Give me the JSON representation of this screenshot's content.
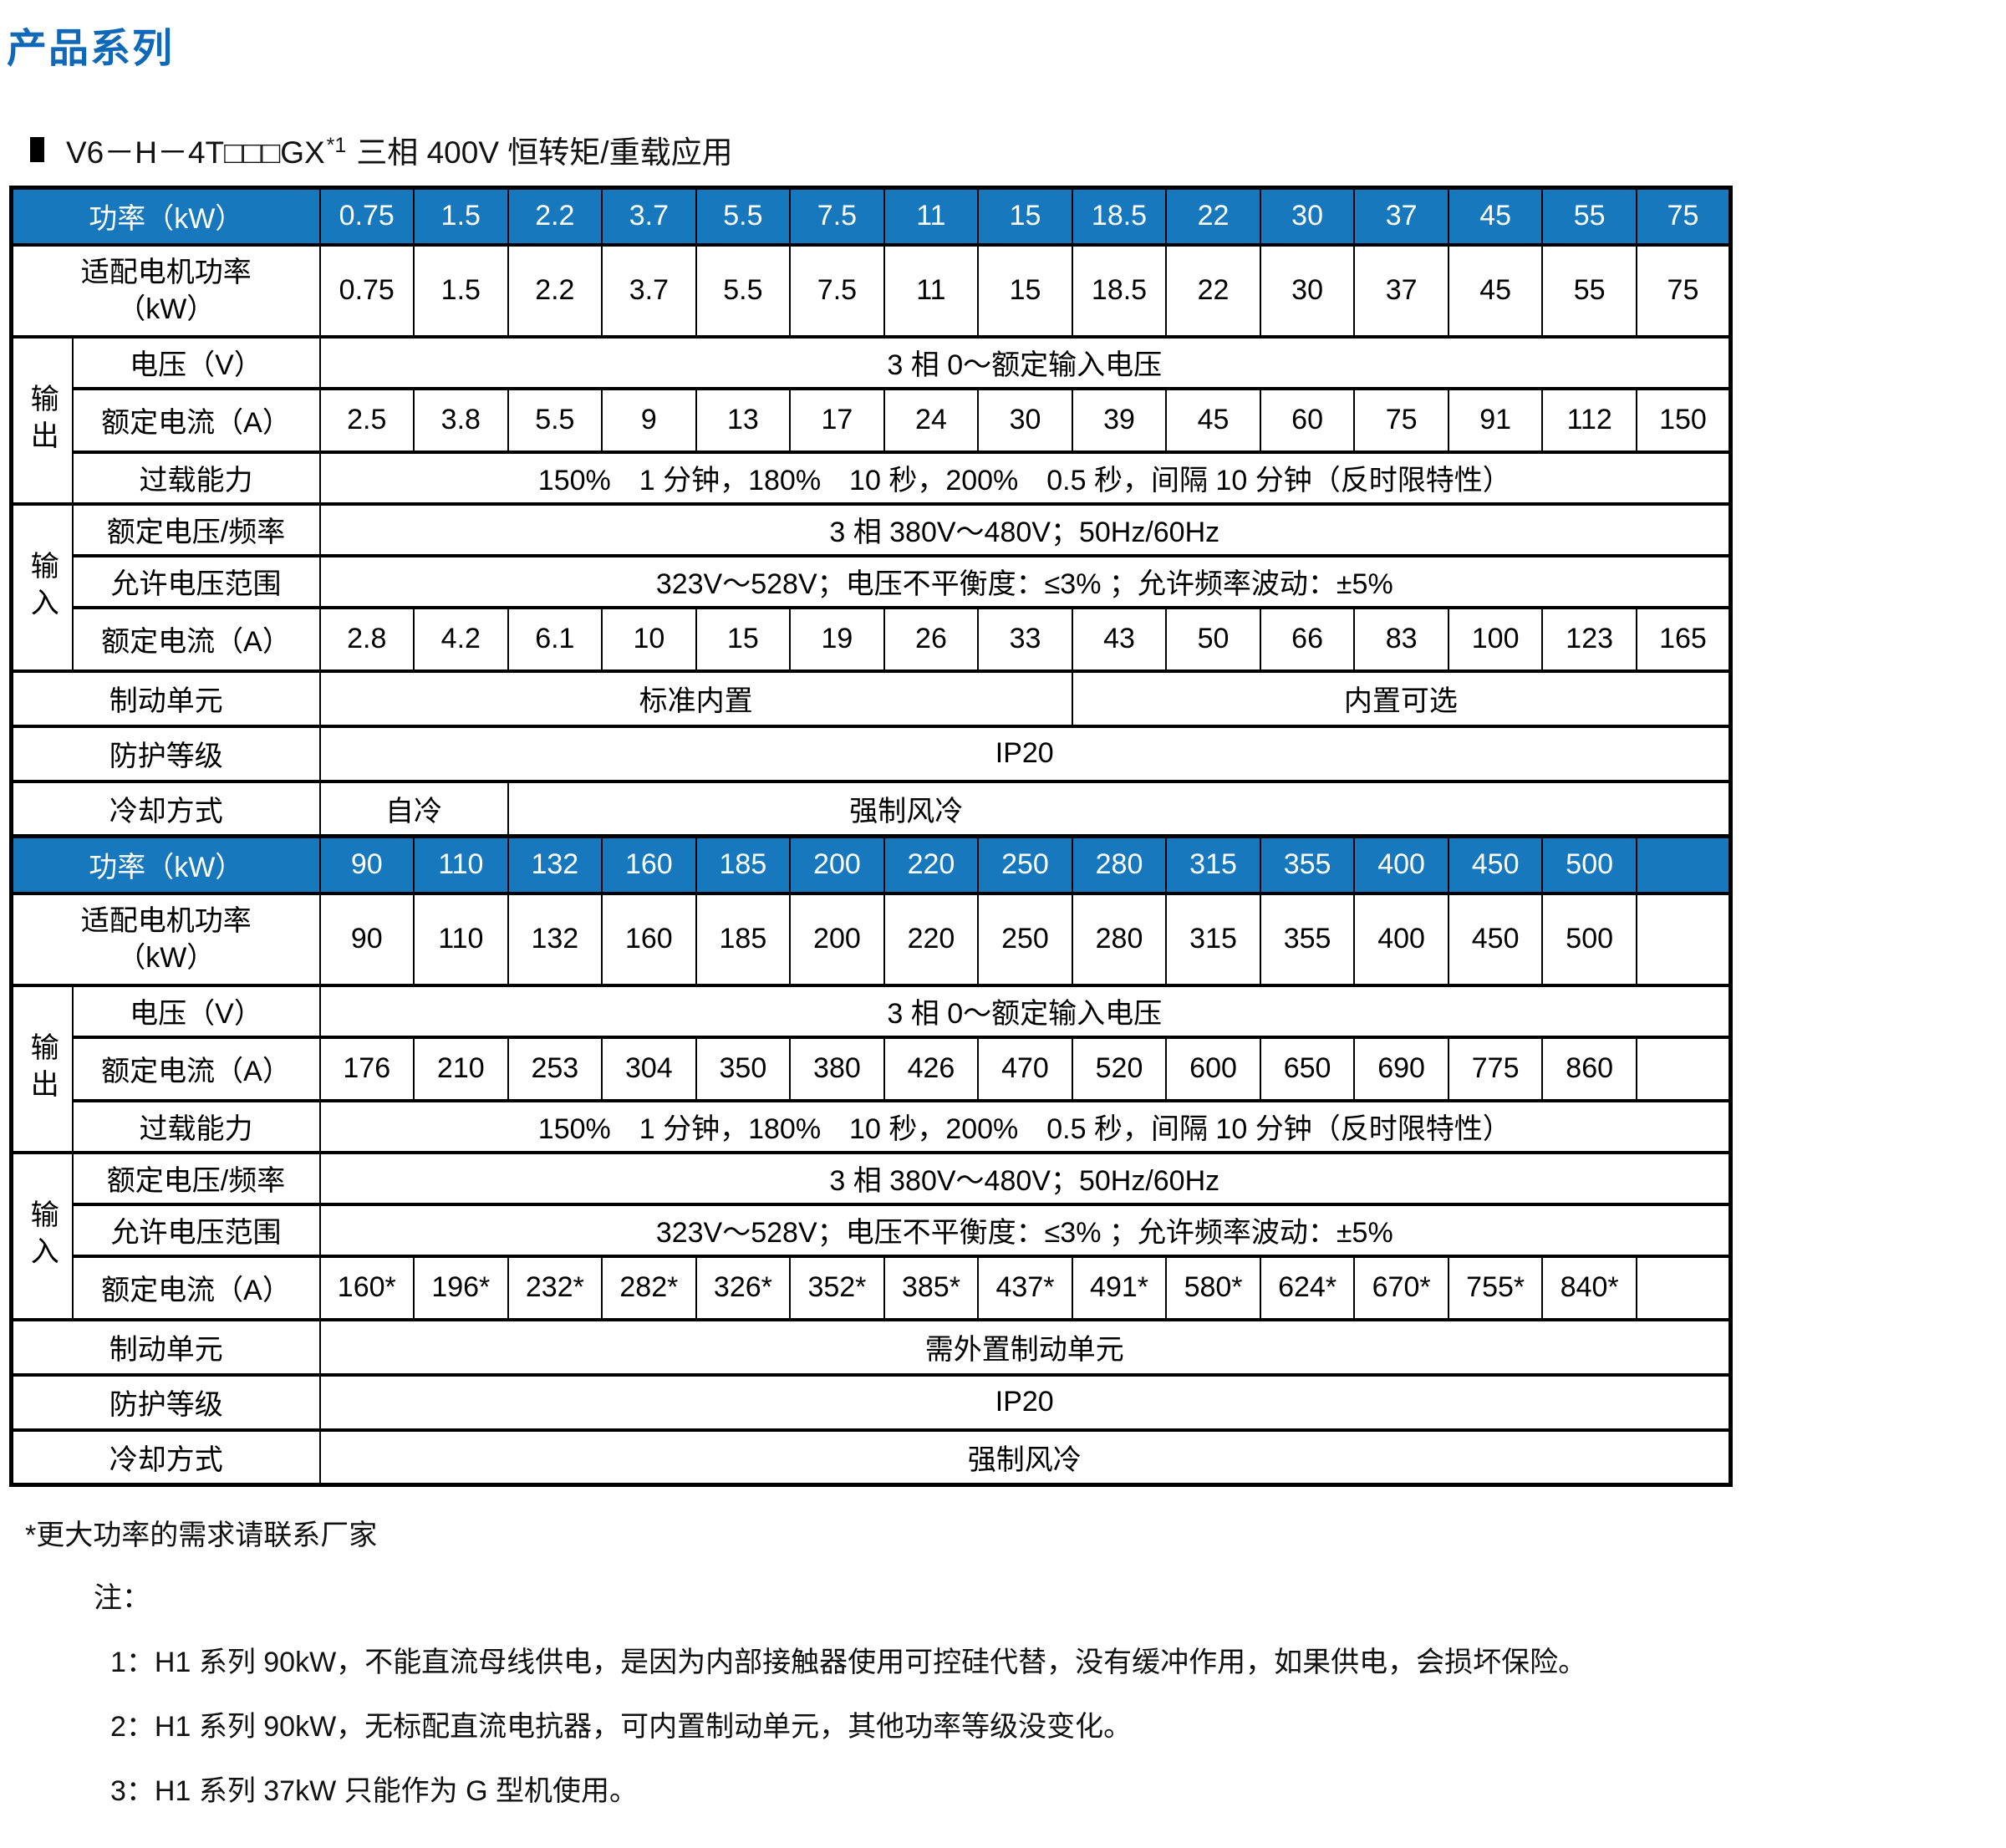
{
  "title": "产品系列",
  "subtitle": {
    "model": "V6－H－4T□□□GX",
    "sup": "*1",
    "desc": "三相 400V 恒转矩/重载应用"
  },
  "colors": {
    "header_blue": "#1778be",
    "title_blue": "#0f68b8"
  },
  "labels": {
    "power": "功率（kW）",
    "motor_power_line1": "适配电机功率",
    "motor_power_line2": "（kW）",
    "output_group": "输出",
    "input_group": "输入",
    "voltage": "电压（V）",
    "rated_current": "额定电流（A）",
    "overload": "过载能力",
    "rated_voltage_freq": "额定电压/频率",
    "allowed_voltage_range": "允许电压范围",
    "brake_unit": "制动单元",
    "protection_level": "防护等级",
    "cooling_method": "冷却方式"
  },
  "shared": {
    "output_voltage": "3 相 0～额定输入电压",
    "overload_text": "150%　1 分钟，180%　10 秒，200%　0.5 秒，间隔 10 分钟（反时限特性）",
    "rated_vf": "3 相 380V～480V；50Hz/60Hz",
    "voltage_range": "323V～528V；电压不平衡度：≤3% ；允许频率波动：±5%",
    "ip_rating": "IP20"
  },
  "t1": {
    "powers": [
      "0.75",
      "1.5",
      "2.2",
      "3.7",
      "5.5",
      "7.5",
      "11",
      "15",
      "18.5",
      "22",
      "30",
      "37",
      "45",
      "55",
      "75"
    ],
    "motor_powers": [
      "0.75",
      "1.5",
      "2.2",
      "3.7",
      "5.5",
      "7.5",
      "11",
      "15",
      "18.5",
      "22",
      "30",
      "37",
      "45",
      "55",
      "75"
    ],
    "out_currents": [
      "2.5",
      "3.8",
      "5.5",
      "9",
      "13",
      "17",
      "24",
      "30",
      "39",
      "45",
      "60",
      "75",
      "91",
      "112",
      "150"
    ],
    "in_currents": [
      "2.8",
      "4.2",
      "6.1",
      "10",
      "15",
      "19",
      "26",
      "33",
      "43",
      "50",
      "66",
      "83",
      "100",
      "123",
      "165"
    ],
    "brake_left": "标准内置",
    "brake_right": "内置可选",
    "cooling_left": "自冷",
    "cooling_right": "强制风冷"
  },
  "t2": {
    "powers": [
      "90",
      "110",
      "132",
      "160",
      "185",
      "200",
      "220",
      "250",
      "280",
      "315",
      "355",
      "400",
      "450",
      "500",
      ""
    ],
    "motor_powers": [
      "90",
      "110",
      "132",
      "160",
      "185",
      "200",
      "220",
      "250",
      "280",
      "315",
      "355",
      "400",
      "450",
      "500",
      ""
    ],
    "out_currents": [
      "176",
      "210",
      "253",
      "304",
      "350",
      "380",
      "426",
      "470",
      "520",
      "600",
      "650",
      "690",
      "775",
      "860",
      ""
    ],
    "in_currents": [
      "160*",
      "196*",
      "232*",
      "282*",
      "326*",
      "352*",
      "385*",
      "437*",
      "491*",
      "580*",
      "624*",
      "670*",
      "755*",
      "840*",
      ""
    ],
    "brake": "需外置制动单元",
    "cooling": "强制风冷"
  },
  "notes": {
    "asterisk": "*更大功率的需求请联系厂家",
    "label": "注：",
    "n1": "1：H1 系列 90kW，不能直流母线供电，是因为内部接触器使用可控硅代替，没有缓冲作用，如果供电，会损坏保险。",
    "n2": "2：H1 系列 90kW，无标配直流电抗器，可内置制动单元，其他功率等级没变化。",
    "n3": "3：H1 系列 37kW 只能作为 G 型机使用。"
  }
}
